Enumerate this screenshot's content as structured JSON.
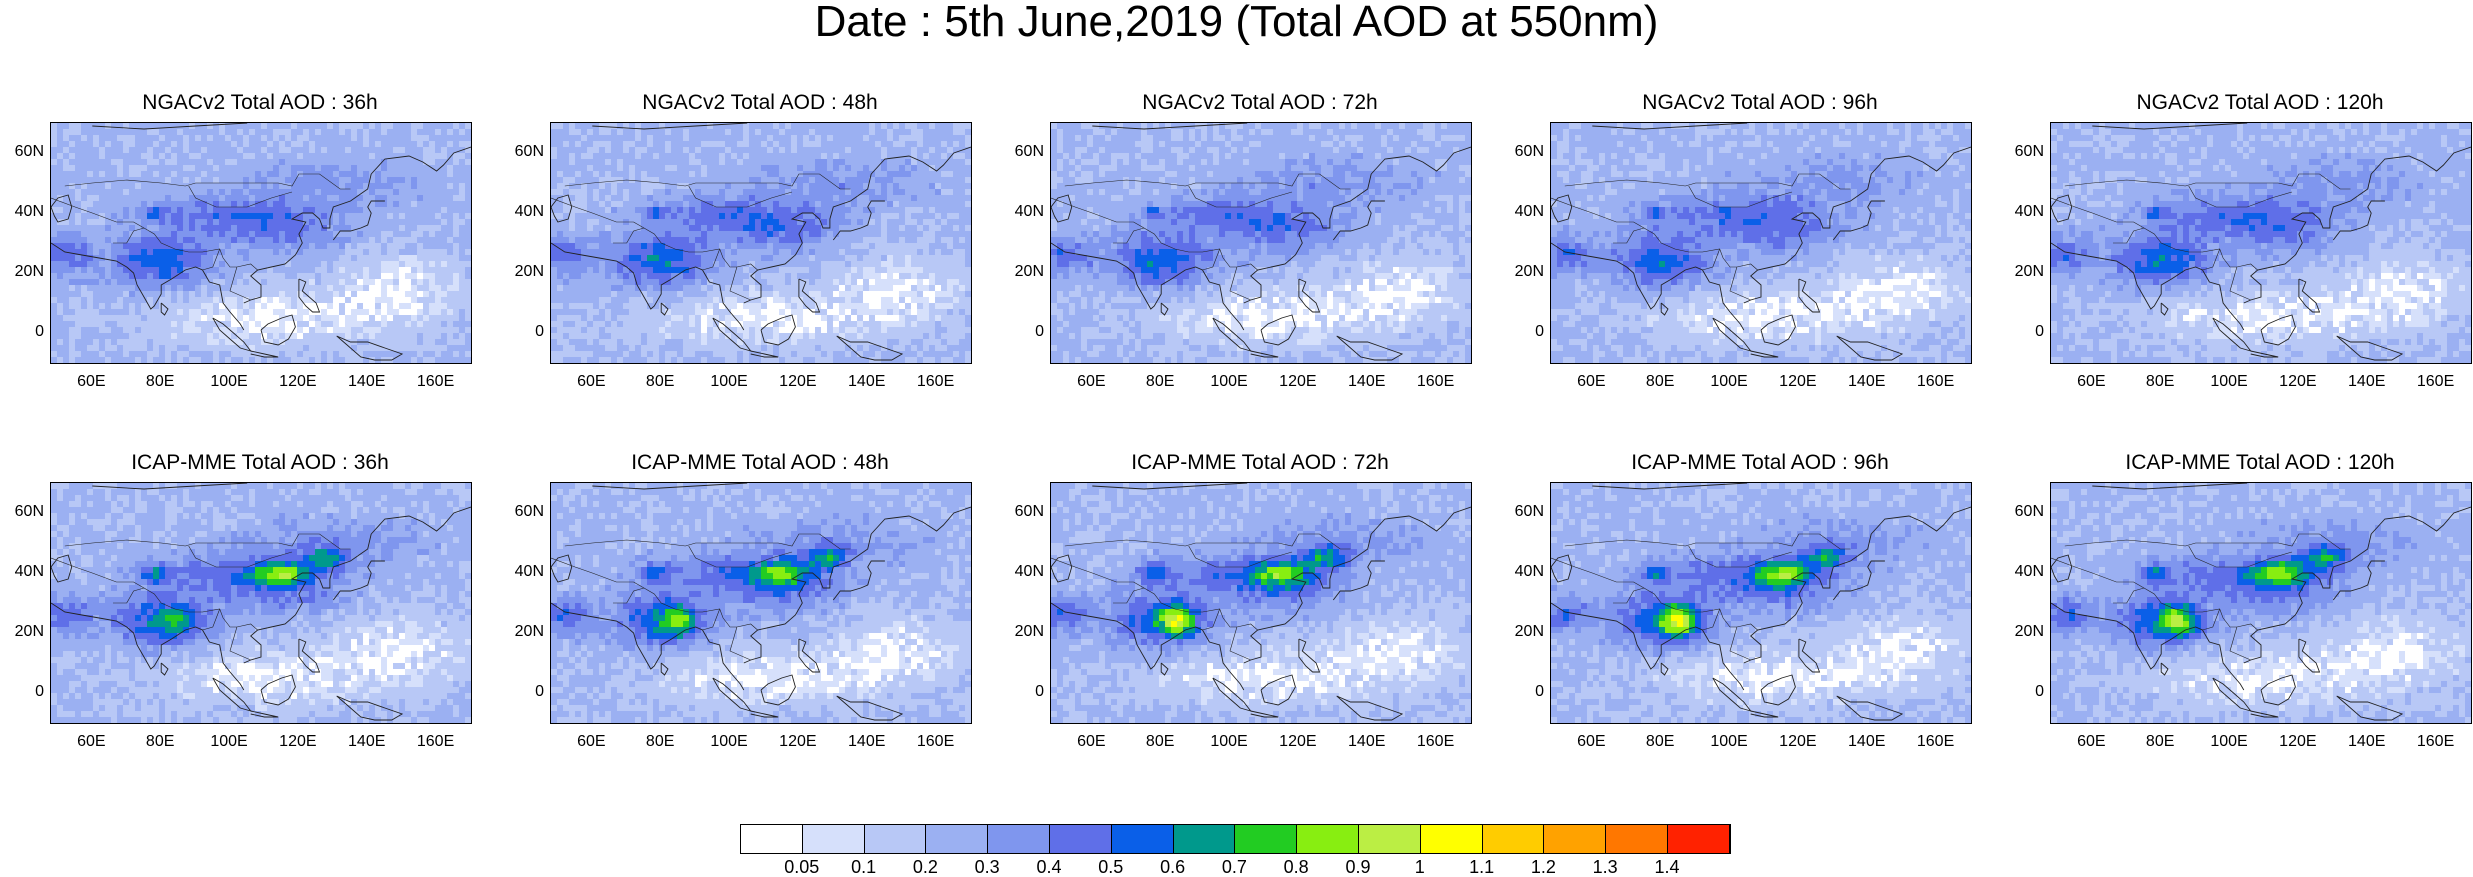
{
  "main_title": "Date : 5th June,2019 (Total AOD at 550nm)",
  "lat_ticks": [
    "60N",
    "40N",
    "20N",
    "0"
  ],
  "lon_ticks": [
    "60E",
    "80E",
    "100E",
    "120E",
    "140E",
    "160E"
  ],
  "panels": [
    {
      "title": "NGACv2 Total AOD : 36h",
      "model": "NGACv2",
      "lead": "36h"
    },
    {
      "title": "NGACv2 Total AOD : 48h",
      "model": "NGACv2",
      "lead": "48h"
    },
    {
      "title": "NGACv2 Total AOD : 72h",
      "model": "NGACv2",
      "lead": "72h"
    },
    {
      "title": "NGACv2 Total AOD : 96h",
      "model": "NGACv2",
      "lead": "96h"
    },
    {
      "title": "NGACv2 Total AOD : 120h",
      "model": "NGACv2",
      "lead": "120h"
    },
    {
      "title": "ICAP-MME Total AOD : 36h",
      "model": "ICAP-MME",
      "lead": "36h"
    },
    {
      "title": "ICAP-MME Total AOD : 48h",
      "model": "ICAP-MME",
      "lead": "48h"
    },
    {
      "title": "ICAP-MME Total AOD : 72h",
      "model": "ICAP-MME",
      "lead": "72h"
    },
    {
      "title": "ICAP-MME Total AOD : 96h",
      "model": "ICAP-MME",
      "lead": "96h"
    },
    {
      "title": "ICAP-MME Total AOD : 120h",
      "model": "ICAP-MME",
      "lead": "120h"
    }
  ],
  "colorbar": {
    "labels": [
      "0.05",
      "0.1",
      "0.2",
      "0.3",
      "0.4",
      "0.5",
      "0.6",
      "0.7",
      "0.8",
      "0.9",
      "1",
      "1.1",
      "1.2",
      "1.3",
      "1.4"
    ],
    "colors": [
      "#ffffff",
      "#d6e0fb",
      "#b8c8f6",
      "#9bb0f2",
      "#7f96ee",
      "#5f6fe8",
      "#0a5fe8",
      "#00998c",
      "#22cc22",
      "#88ee11",
      "#bbee44",
      "#ffff00",
      "#ffcc00",
      "#ffa200",
      "#ff7700",
      "#ff2200"
    ]
  }
}
